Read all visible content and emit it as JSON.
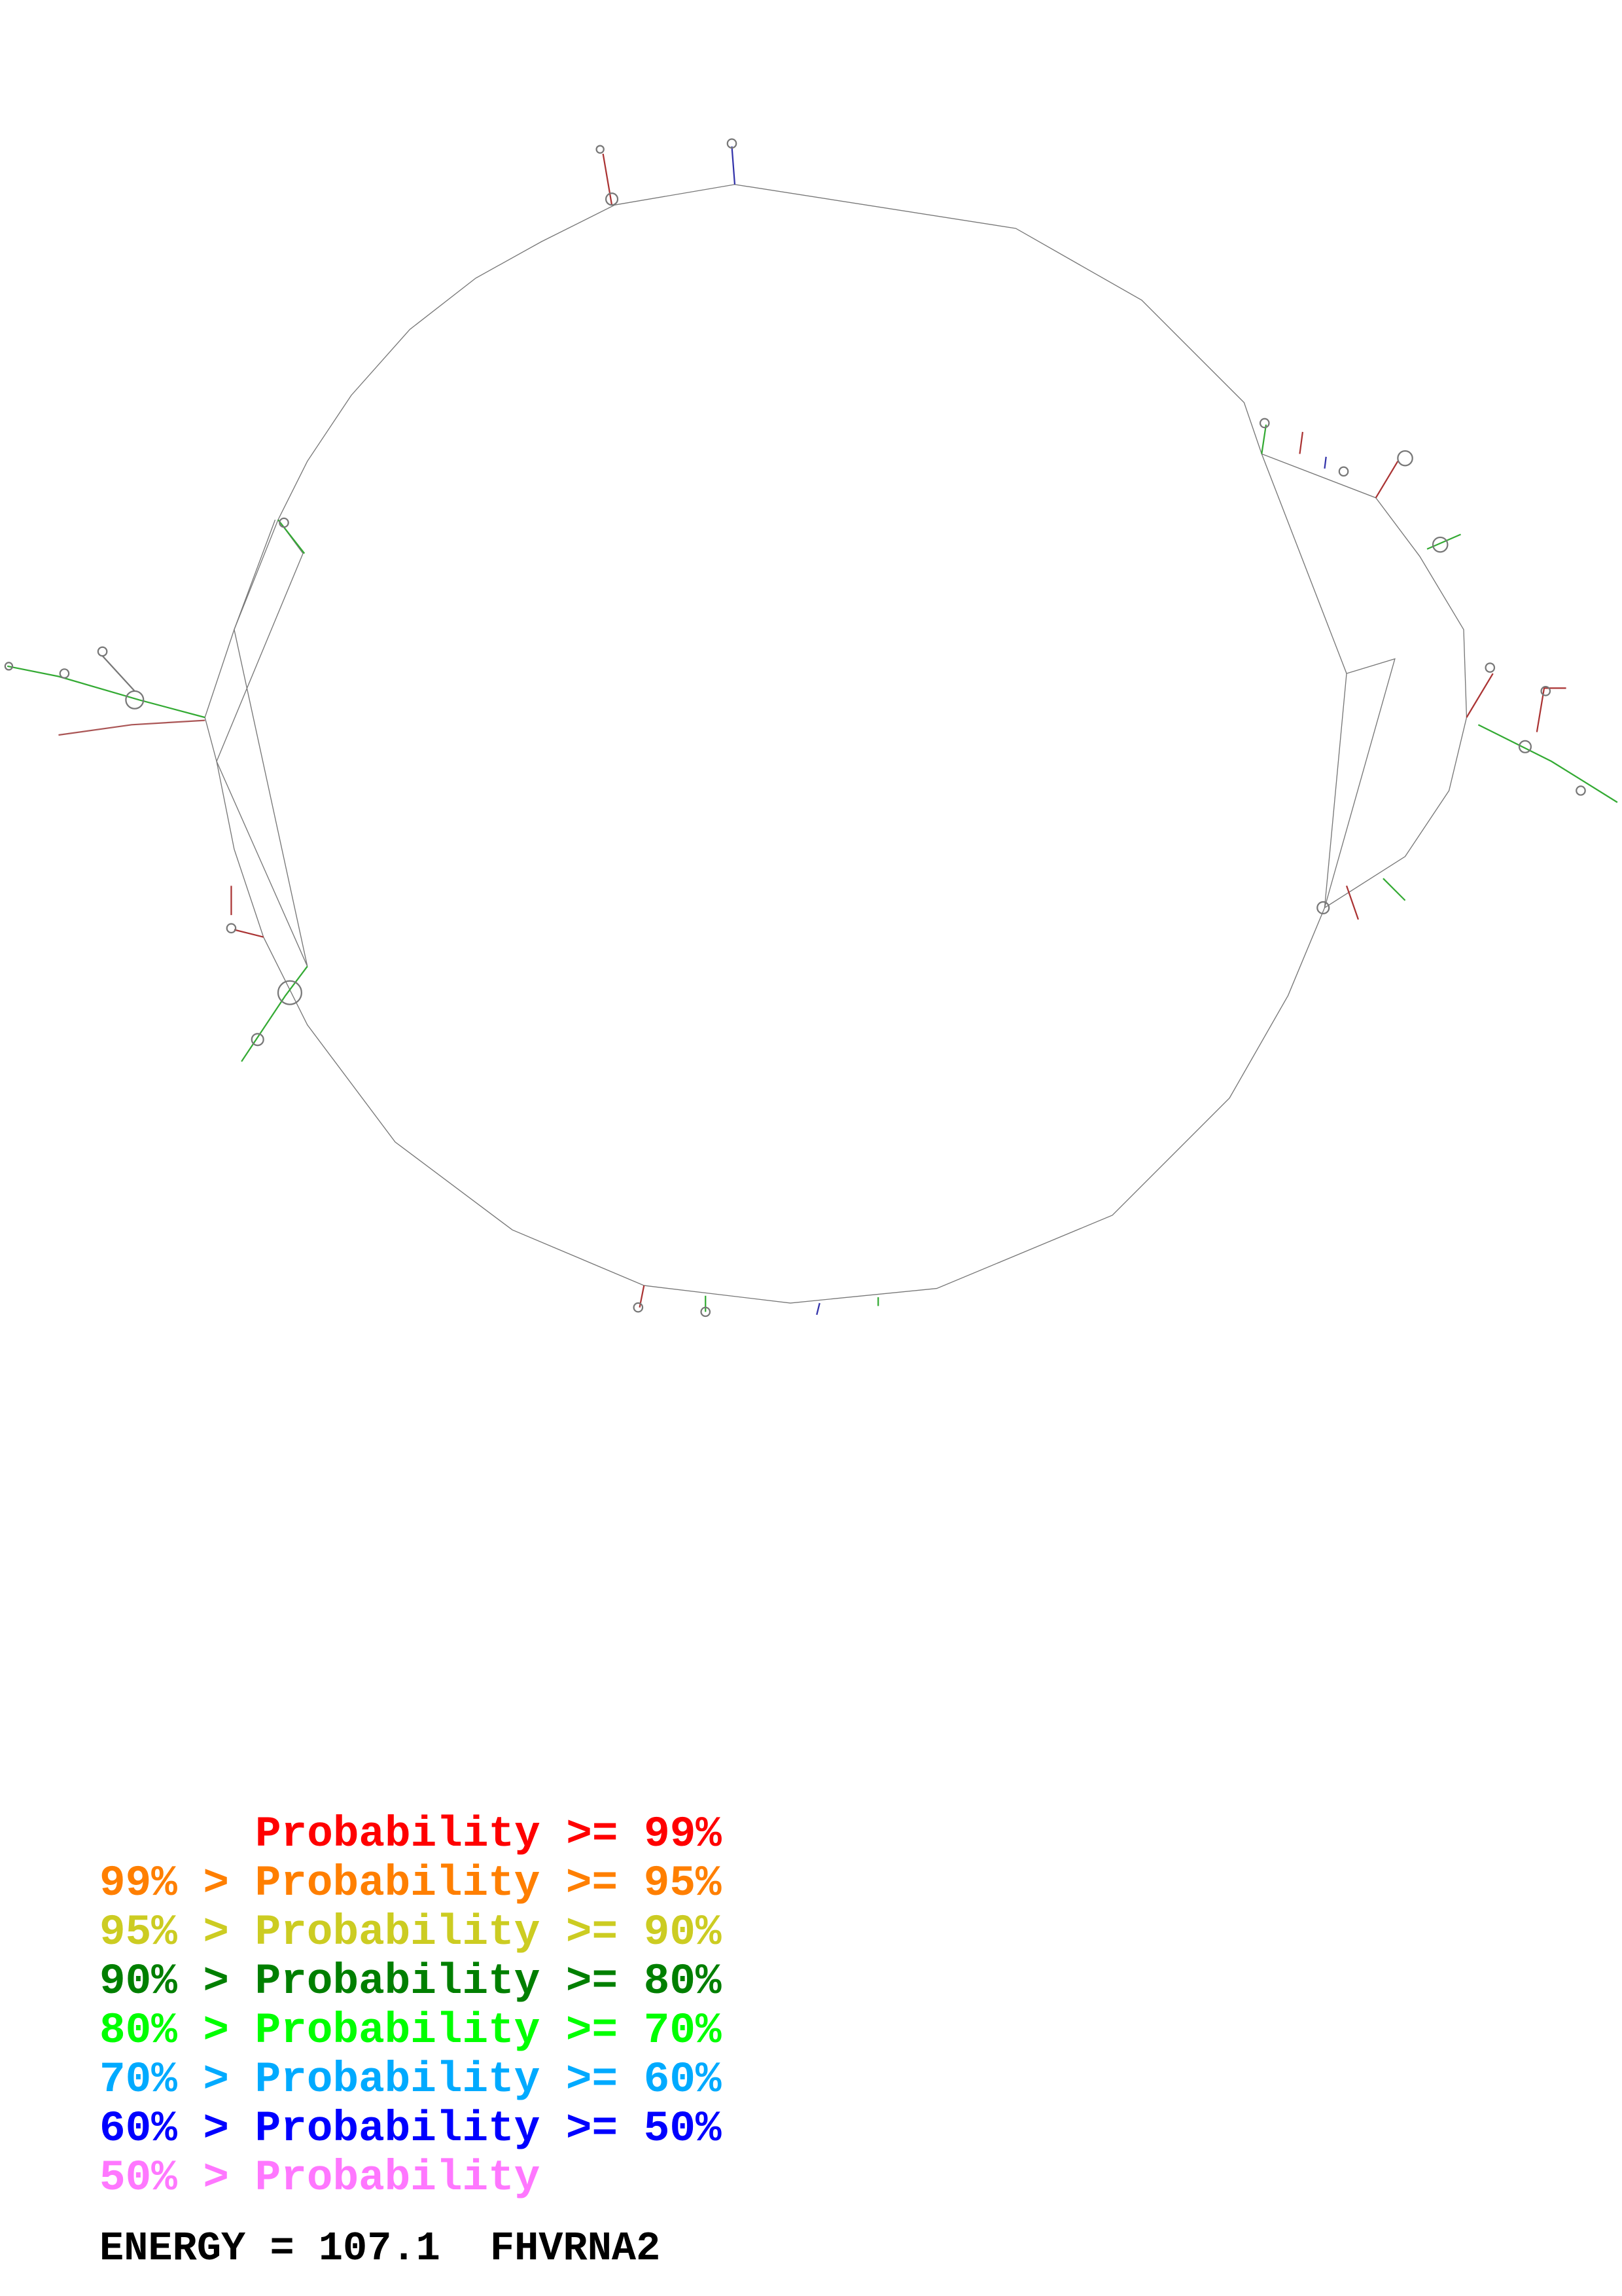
{
  "legend": [
    {
      "text": "Probability >= 99%",
      "color": "#ff0000"
    },
    {
      "text": "99% > Probability >= 95%",
      "color": "#ff7f00"
    },
    {
      "text": "95% > Probability >= 90%",
      "color": "#cccc22"
    },
    {
      "text": "90% > Probability >= 80%",
      "color": "#007f00"
    },
    {
      "text": "80% > Probability >= 70%",
      "color": "#00ff00"
    },
    {
      "text": "70% > Probability >= 60%",
      "color": "#00aaff"
    },
    {
      "text": "60% > Probability >= 50%",
      "color": "#0000ff"
    },
    {
      "text": "50% > Probability",
      "color": "#ff77ff"
    }
  ],
  "footer": {
    "energy": "ENERGY = 107.1",
    "sequence_name": "FHVRNA2"
  }
}
